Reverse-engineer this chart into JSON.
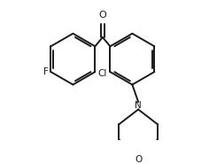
{
  "background_color": "#ffffff",
  "line_color": "#1a1a1a",
  "line_width": 1.4,
  "text_color": "#1a1a1a",
  "font_size": 7.5,
  "figsize": [
    2.36,
    1.85
  ],
  "dpi": 100,
  "xlim": [
    0,
    236
  ],
  "ylim": [
    0,
    185
  ]
}
